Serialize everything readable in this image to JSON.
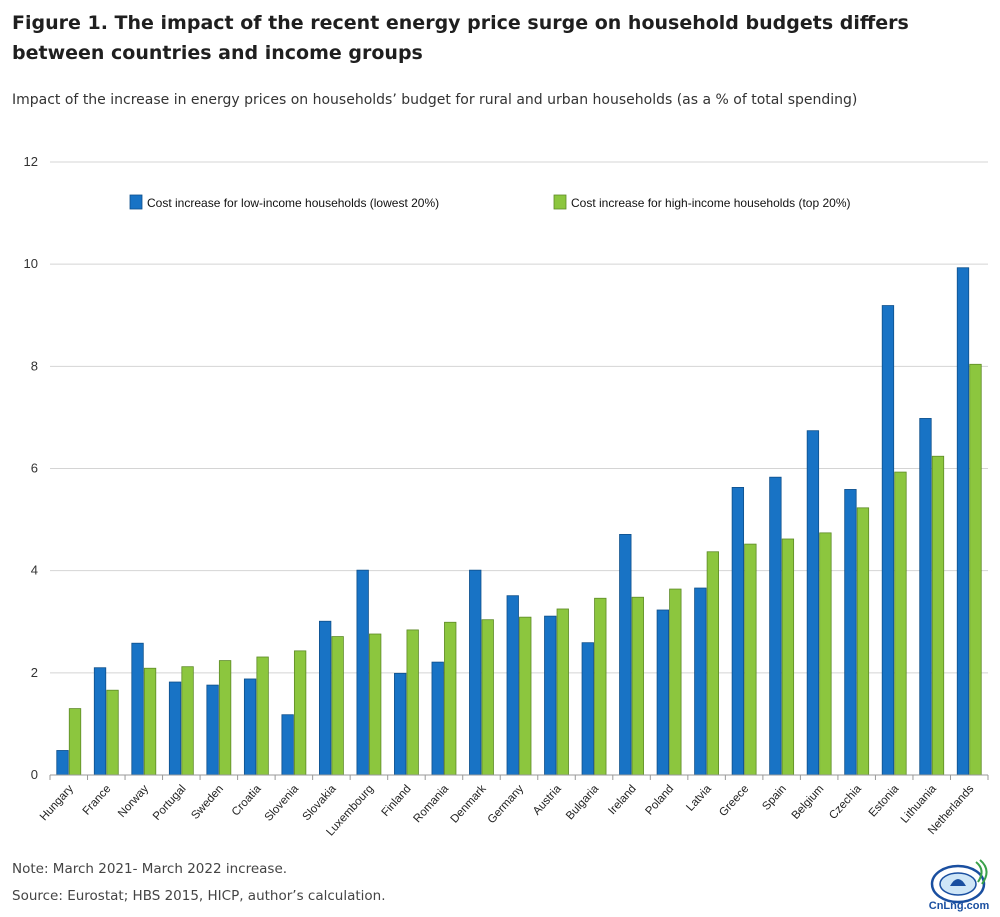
{
  "header": {
    "title": "Figure 1. The impact of the recent energy price surge on household budgets differs between countries and income groups",
    "subtitle": "Impact of the increase in energy prices on households’ budget for rural and urban households (as a % of total spending)"
  },
  "footer": {
    "note": "Note: March 2021- March 2022 increase.",
    "source": "Source: Eurostat; HBS 2015, HICP, author’s calculation."
  },
  "logo": {
    "icon": "cnlng-logo-icon",
    "text": "CnLng.com"
  },
  "chart_data": {
    "type": "bar",
    "ylim": [
      0,
      12
    ],
    "yticks": [
      0,
      2,
      4,
      6,
      8,
      10,
      12
    ],
    "grid": true,
    "legend_position": "top",
    "categories": [
      "Hungary",
      "France",
      "Norway",
      "Portugal",
      "Sweden",
      "Croatia",
      "Slovenia",
      "Slovakia",
      "Luxembourg",
      "Finland",
      "Romania",
      "Denmark",
      "Germany",
      "Austria",
      "Bulgaria",
      "Ireland",
      "Poland",
      "Latvia",
      "Greece",
      "Spain",
      "Belgium",
      "Czechia",
      "Estonia",
      "Lithuania",
      "Netherlands"
    ],
    "series": [
      {
        "name": "Cost increase for low-income households (lowest 20%)",
        "color": "#1873c5",
        "values": [
          0.48,
          2.1,
          2.58,
          1.82,
          1.76,
          1.88,
          1.18,
          3.01,
          4.01,
          1.99,
          2.21,
          4.01,
          3.51,
          3.11,
          2.59,
          4.71,
          3.23,
          3.66,
          5.63,
          5.83,
          6.74,
          5.59,
          9.19,
          6.98,
          9.93
        ]
      },
      {
        "name": "Cost increase for high-income households (top 20%)",
        "color": "#8cc63e",
        "values": [
          1.3,
          1.66,
          2.09,
          2.12,
          2.24,
          2.31,
          2.43,
          2.71,
          2.76,
          2.84,
          2.99,
          3.04,
          3.09,
          3.25,
          3.46,
          3.48,
          3.64,
          4.37,
          4.52,
          4.62,
          4.74,
          5.23,
          5.93,
          6.24,
          8.04
        ]
      }
    ]
  }
}
